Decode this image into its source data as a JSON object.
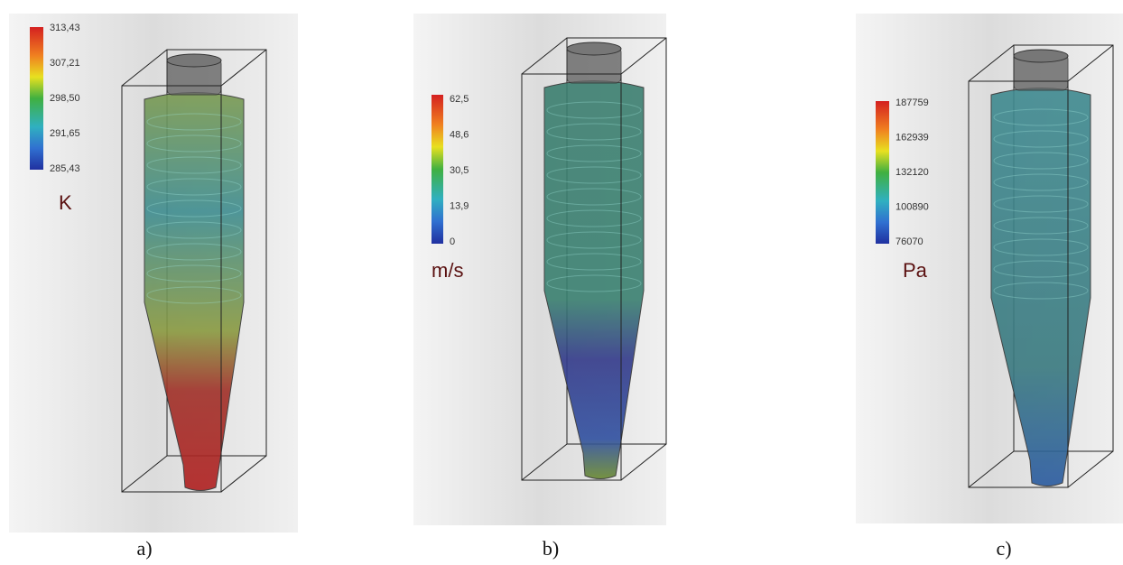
{
  "panels": [
    {
      "colorbar": {
        "labels": [
          "313,43",
          "307,21",
          "298,50",
          "291,65",
          "285,43"
        ],
        "unit": "K"
      },
      "caption": "a)"
    },
    {
      "colorbar": {
        "labels": [
          "62,5",
          "48,6",
          "30,5",
          "13,9",
          "0"
        ],
        "unit": "m/s"
      },
      "caption": "b)"
    },
    {
      "colorbar": {
        "labels": [
          "187759",
          "162939",
          "132120",
          "100890",
          "76070"
        ],
        "unit": "Pa"
      },
      "caption": "c)"
    }
  ]
}
